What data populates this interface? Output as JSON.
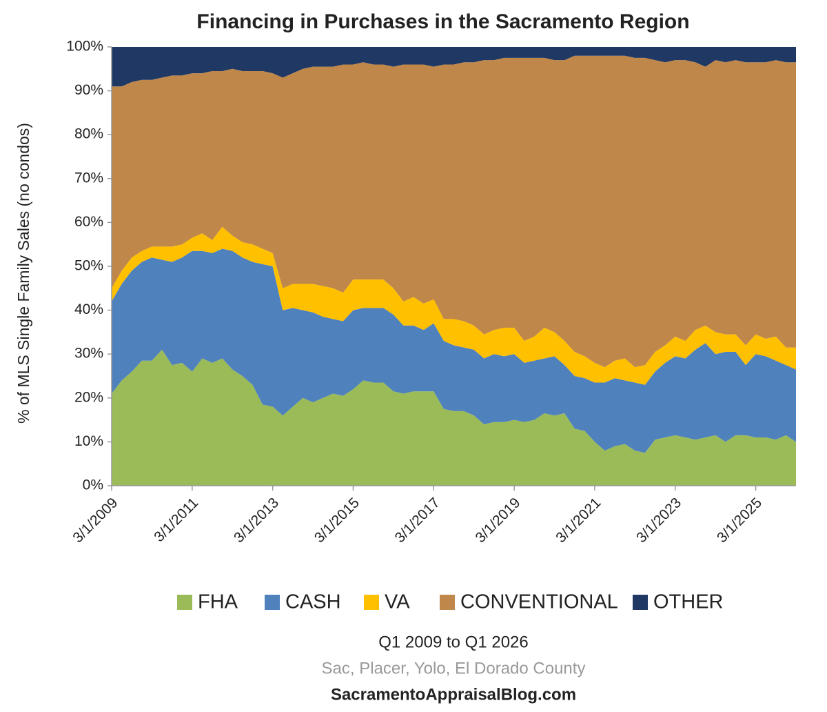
{
  "chart_data": {
    "type": "stacked_area",
    "title": "Financing in Purchases in the Sacramento Region",
    "y_label": "% of MLS Single Family Sales (no condos)",
    "subtitle": "Q1 2009 to Q1 2026",
    "note": "Sac, Placer,  Yolo, El Dorado County",
    "source": "SacramentoAppraisalBlog.com",
    "categories": [
      "3/1/2009",
      null,
      null,
      null,
      null,
      null,
      null,
      null,
      "3/1/2011",
      null,
      null,
      null,
      null,
      null,
      null,
      null,
      "3/1/2013",
      null,
      null,
      null,
      null,
      null,
      null,
      null,
      "3/1/2015",
      null,
      null,
      null,
      null,
      null,
      null,
      null,
      "3/1/2017",
      null,
      null,
      null,
      null,
      null,
      null,
      null,
      "3/1/2019",
      null,
      null,
      null,
      null,
      null,
      null,
      null,
      "3/1/2021",
      null,
      null,
      null,
      null,
      null,
      null,
      null,
      "3/1/2023",
      null,
      null,
      null,
      null,
      null,
      null,
      null,
      "3/1/2025",
      null,
      null,
      null,
      null
    ],
    "series": [
      {
        "name": "FHA",
        "color": "#9bbb59",
        "values": [
          21,
          24,
          26,
          28.5,
          28.5,
          31,
          27.5,
          28,
          26,
          29,
          28,
          29,
          26.5,
          25,
          23,
          18.5,
          18,
          16,
          18,
          20,
          19,
          20,
          21,
          20.5,
          22,
          24,
          23.5,
          23.5,
          21.5,
          21,
          21.5,
          21.5,
          21.5,
          17.5,
          17,
          17,
          16,
          14,
          14.5,
          14.5,
          15,
          14.5,
          15,
          16.5,
          16,
          16.5,
          13,
          12.5,
          10,
          8,
          9,
          9.5,
          8,
          7.5,
          10.5,
          11,
          11.5,
          11,
          10.5,
          11,
          11.5,
          10,
          11.5,
          11.5,
          11,
          11,
          10.5,
          11.5,
          10
        ]
      },
      {
        "name": "CASH",
        "color": "#4f81bd",
        "values": [
          21,
          22,
          23,
          22.5,
          23.5,
          20.5,
          23.5,
          24,
          27.5,
          24.5,
          25,
          25,
          27,
          27,
          28,
          32,
          32,
          24,
          22.5,
          20,
          20.5,
          18.5,
          17,
          17,
          18,
          16.5,
          17,
          17,
          17.5,
          15.5,
          15,
          14,
          15.5,
          15.5,
          15,
          14.5,
          15,
          15,
          15.5,
          15,
          15,
          13.5,
          13.5,
          12.5,
          13.5,
          11,
          12,
          12,
          13.5,
          15.5,
          15.5,
          14.5,
          15.5,
          15.5,
          15.5,
          17,
          18,
          18,
          20.5,
          21.5,
          18.5,
          20.5,
          19,
          16,
          19,
          18.5,
          18,
          16,
          16.5
        ]
      },
      {
        "name": "VA",
        "color": "#ffc000",
        "values": [
          3,
          3,
          3,
          2.5,
          2.5,
          3,
          3.5,
          3,
          3,
          4,
          3,
          5,
          3.5,
          3.5,
          4,
          3.5,
          3,
          5,
          5.5,
          6,
          6.5,
          7,
          7,
          6.5,
          7,
          6.5,
          6.5,
          6.5,
          6,
          5.5,
          6.5,
          6,
          5.5,
          5,
          6,
          6,
          5.5,
          5.5,
          5.5,
          6.5,
          6,
          5,
          5.5,
          7,
          5.5,
          5.5,
          5.5,
          5,
          4.5,
          3.5,
          4,
          5,
          3.5,
          4.5,
          4.5,
          4,
          4.5,
          4,
          4.5,
          4,
          5,
          4,
          4,
          4.5,
          4.5,
          4,
          5.5,
          4,
          5
        ]
      },
      {
        "name": "CONVENTIONAL",
        "color": "#c0874a",
        "values": [
          46,
          42,
          40,
          39,
          38,
          38.5,
          39,
          38.5,
          37.5,
          36.5,
          38.5,
          35.5,
          38,
          39,
          39.5,
          40.5,
          41,
          48,
          48,
          49,
          49.5,
          50,
          50.5,
          52,
          49,
          49.5,
          49,
          49,
          50.5,
          54,
          53,
          54.5,
          53,
          58,
          58,
          59,
          60,
          62.5,
          61.5,
          61.5,
          61.5,
          64.5,
          63.5,
          61.5,
          62,
          64,
          67.5,
          68.5,
          70,
          71,
          69.5,
          69,
          70.5,
          70,
          66.5,
          64.5,
          63,
          64,
          61,
          59,
          62,
          62,
          62.5,
          64.5,
          62,
          63,
          63,
          65,
          65
        ]
      },
      {
        "name": "OTHER",
        "color": "#1f3864",
        "values": [
          9,
          9,
          8,
          7.5,
          7.5,
          7,
          6.5,
          6.5,
          6,
          6,
          5.5,
          5.5,
          5,
          5.5,
          5.5,
          5.5,
          6,
          7,
          6,
          5,
          4.5,
          4.5,
          4.5,
          4,
          4,
          3.5,
          4,
          4,
          4.5,
          4,
          4,
          4,
          4.5,
          4,
          4,
          3.5,
          3.5,
          3,
          3,
          2.5,
          2.5,
          2.5,
          2.5,
          2.5,
          3,
          3,
          2,
          2,
          2,
          2,
          2,
          2,
          2.5,
          2.5,
          3,
          3.5,
          3,
          3,
          3.5,
          4.5,
          3,
          3.5,
          3,
          3.5,
          3.5,
          3.5,
          3,
          3.5,
          3.5
        ]
      }
    ],
    "ylim": [
      0,
      100
    ],
    "yticks": [
      {
        "value": 0,
        "label": "0%"
      },
      {
        "value": 10,
        "label": "10%"
      },
      {
        "value": 20,
        "label": "20%"
      },
      {
        "value": 30,
        "label": "30%"
      },
      {
        "value": 40,
        "label": "40%"
      },
      {
        "value": 50,
        "label": "50%"
      },
      {
        "value": 60,
        "label": "60%"
      },
      {
        "value": 70,
        "label": "70%"
      },
      {
        "value": 80,
        "label": "80%"
      },
      {
        "value": 90,
        "label": "90%"
      },
      {
        "value": 100,
        "label": "100%"
      }
    ],
    "grid": false,
    "legend": "bottom"
  }
}
